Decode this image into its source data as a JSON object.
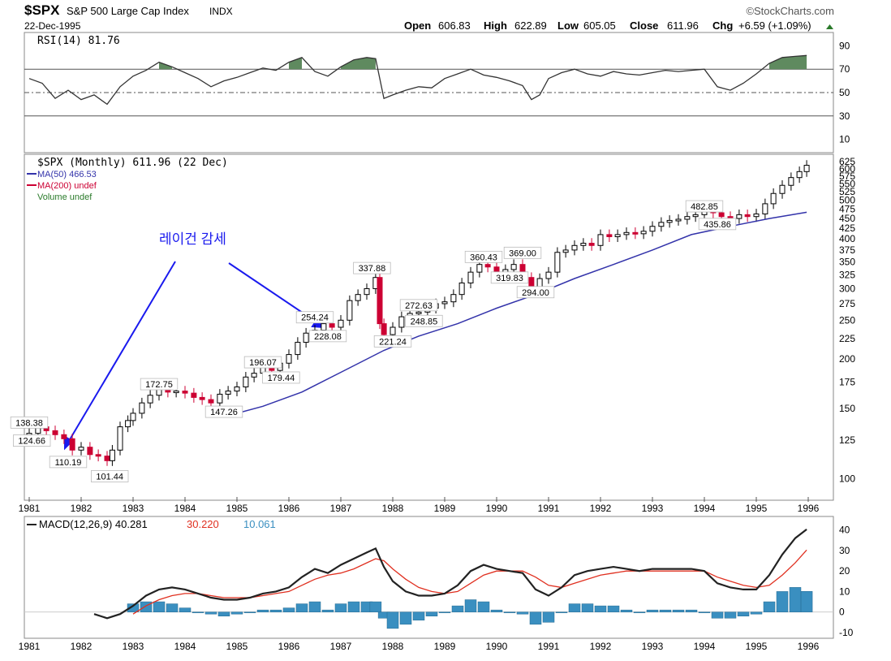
{
  "header": {
    "symbol": "$SPX",
    "name": "S&P 500 Large Cap Index",
    "exchange": "INDX",
    "date": "22-Dec-1995",
    "brand": "©StockCharts.com",
    "open_label": "Open",
    "open": "606.83",
    "high_label": "High",
    "high": "622.89",
    "low_label": "Low",
    "low": "605.05",
    "close_label": "Close",
    "close": "611.96",
    "chg_label": "Chg",
    "chg": "+6.59 (+1.09%)"
  },
  "annotation": {
    "text": "레이건 감세"
  },
  "colors": {
    "up": "#000000",
    "down": "#cc0033",
    "ma50": "#3333aa",
    "rsi_fill": "#5f8a5f",
    "macd": "#222222",
    "signal": "#e03020",
    "hist": "#3a8fc0"
  },
  "chart_data": [
    {
      "type": "line",
      "title": "RSI(14) 81.76",
      "ylim": [
        0,
        100
      ],
      "yticks": [
        10,
        30,
        50,
        70,
        90
      ],
      "hlines": [
        30,
        50,
        70
      ],
      "x": [
        1981.0,
        1981.25,
        1981.5,
        1981.75,
        1982.0,
        1982.25,
        1982.5,
        1982.75,
        1983.0,
        1983.25,
        1983.5,
        1983.75,
        1984.0,
        1984.25,
        1984.5,
        1984.75,
        1985.0,
        1985.25,
        1985.5,
        1985.75,
        1986.0,
        1986.25,
        1986.5,
        1986.75,
        1987.0,
        1987.25,
        1987.5,
        1987.67,
        1987.83,
        1988.0,
        1988.25,
        1988.5,
        1988.75,
        1989.0,
        1989.25,
        1989.5,
        1989.75,
        1990.0,
        1990.25,
        1990.5,
        1990.67,
        1990.83,
        1991.0,
        1991.25,
        1991.5,
        1991.75,
        1992.0,
        1992.25,
        1992.5,
        1992.75,
        1993.0,
        1993.25,
        1993.5,
        1993.75,
        1994.0,
        1994.25,
        1994.5,
        1994.75,
        1995.0,
        1995.25,
        1995.5,
        1995.75,
        1995.97
      ],
      "y": [
        62,
        58,
        45,
        52,
        44,
        48,
        40,
        55,
        64,
        69,
        76,
        72,
        67,
        62,
        55,
        60,
        63,
        67,
        71,
        69,
        76,
        80,
        68,
        64,
        72,
        78,
        80,
        79,
        45,
        48,
        52,
        55,
        54,
        62,
        66,
        70,
        65,
        63,
        60,
        56,
        44,
        48,
        62,
        67,
        70,
        66,
        64,
        68,
        66,
        65,
        67,
        69,
        68,
        69,
        70,
        55,
        52,
        58,
        66,
        75,
        80,
        81,
        81.76
      ]
    },
    {
      "type": "candlestick",
      "title": "$SPX (Monthly) 611.96 (22 Dec)",
      "scale": "log",
      "ylim": [
        90,
        640
      ],
      "yticks": [
        100,
        125,
        150,
        175,
        200,
        225,
        250,
        275,
        300,
        325,
        350,
        375,
        400,
        425,
        450,
        475,
        500,
        525,
        550,
        575,
        600,
        625
      ],
      "xticks": [
        "1981",
        "1982",
        "1983",
        "1984",
        "1985",
        "1986",
        "1987",
        "1988",
        "1989",
        "1990",
        "1991",
        "1992",
        "1993",
        "1994",
        "1995",
        "1996"
      ],
      "legend": [
        "$SPX (Monthly) 611.96 (22 Dec)",
        "MA(50) 466.53",
        "MA(200) undef",
        "Volume undef"
      ],
      "series": [
        {
          "name": "$SPX",
          "x": [
            1981.0,
            1981.17,
            1981.33,
            1981.5,
            1981.67,
            1981.83,
            1982.0,
            1982.17,
            1982.33,
            1982.5,
            1982.6,
            1982.75,
            1982.9,
            1983.0,
            1983.17,
            1983.33,
            1983.5,
            1983.67,
            1983.83,
            1984.0,
            1984.17,
            1984.33,
            1984.5,
            1984.67,
            1984.83,
            1985.0,
            1985.17,
            1985.33,
            1985.5,
            1985.67,
            1985.83,
            1986.0,
            1986.17,
            1986.33,
            1986.5,
            1986.67,
            1986.83,
            1987.0,
            1987.17,
            1987.33,
            1987.5,
            1987.67,
            1987.75,
            1987.83,
            1988.0,
            1988.17,
            1988.33,
            1988.5,
            1988.67,
            1988.83,
            1989.0,
            1989.17,
            1989.33,
            1989.5,
            1989.67,
            1989.83,
            1990.0,
            1990.17,
            1990.33,
            1990.5,
            1990.67,
            1990.83,
            1991.0,
            1991.17,
            1991.33,
            1991.5,
            1991.67,
            1991.83,
            1992.0,
            1992.17,
            1992.33,
            1992.5,
            1992.67,
            1992.83,
            1993.0,
            1993.17,
            1993.33,
            1993.5,
            1993.67,
            1993.83,
            1994.0,
            1994.17,
            1994.33,
            1994.5,
            1994.67,
            1994.83,
            1995.0,
            1995.17,
            1995.33,
            1995.5,
            1995.67,
            1995.83,
            1995.97
          ],
          "close": [
            130,
            135,
            132,
            129,
            126,
            118,
            120,
            115,
            114,
            111,
            118,
            135,
            140,
            146,
            155,
            162,
            168,
            165,
            166,
            164,
            160,
            158,
            155,
            163,
            166,
            170,
            180,
            184,
            190,
            187,
            195,
            205,
            220,
            232,
            236,
            245,
            240,
            250,
            280,
            290,
            300,
            320,
            245,
            230,
            240,
            255,
            260,
            262,
            268,
            275,
            278,
            290,
            310,
            330,
            345,
            340,
            330,
            335,
            345,
            320,
            300,
            318,
            330,
            370,
            375,
            385,
            390,
            385,
            410,
            405,
            410,
            415,
            412,
            418,
            430,
            440,
            445,
            448,
            455,
            460,
            480,
            465,
            455,
            450,
            460,
            455,
            462,
            490,
            520,
            545,
            570,
            590,
            611.96
          ]
        },
        {
          "name": "MA(50)",
          "x": [
            1984.75,
            1985.5,
            1986.25,
            1987.0,
            1987.83,
            1988.5,
            1989.25,
            1990.0,
            1990.75,
            1991.5,
            1992.25,
            1993.0,
            1993.75,
            1994.5,
            1995.25,
            1995.97
          ],
          "y": [
            143,
            152,
            165,
            185,
            210,
            228,
            245,
            268,
            290,
            318,
            345,
            375,
            410,
            430,
            450,
            466.53
          ]
        }
      ],
      "labels": [
        {
          "text": "138.38",
          "x": 1981.0,
          "y": 138.38
        },
        {
          "text": "124.66",
          "x": 1981.05,
          "y": 124.66
        },
        {
          "text": "110.19",
          "x": 1981.75,
          "y": 110.19
        },
        {
          "text": "101.44",
          "x": 1982.55,
          "y": 101.44
        },
        {
          "text": "172.75",
          "x": 1983.5,
          "y": 172.75
        },
        {
          "text": "147.26",
          "x": 1984.75,
          "y": 147.26
        },
        {
          "text": "196.07",
          "x": 1985.5,
          "y": 196.07
        },
        {
          "text": "179.44",
          "x": 1985.85,
          "y": 179.44
        },
        {
          "text": "254.24",
          "x": 1986.5,
          "y": 254.24
        },
        {
          "text": "228.08",
          "x": 1986.75,
          "y": 228.08
        },
        {
          "text": "337.88",
          "x": 1987.6,
          "y": 337.88
        },
        {
          "text": "272.63",
          "x": 1988.5,
          "y": 272.63
        },
        {
          "text": "248.85",
          "x": 1988.6,
          "y": 248.85
        },
        {
          "text": "221.24",
          "x": 1988.0,
          "y": 221.24
        },
        {
          "text": "360.43",
          "x": 1989.75,
          "y": 360.43
        },
        {
          "text": "369.00",
          "x": 1990.5,
          "y": 369.0
        },
        {
          "text": "319.83",
          "x": 1990.25,
          "y": 319.83
        },
        {
          "text": "294.00",
          "x": 1990.75,
          "y": 294.0
        },
        {
          "text": "482.85",
          "x": 1994.0,
          "y": 482.85
        },
        {
          "text": "435.86",
          "x": 1994.25,
          "y": 435.86
        }
      ]
    },
    {
      "type": "line",
      "title": "MACD(12,26,9) 40.281, 30.220, 10.061",
      "ylim": [
        -12,
        45
      ],
      "yticks": [
        -10,
        0,
        10,
        20,
        30,
        40
      ],
      "series": [
        {
          "name": "MACD(12,26,9)",
          "label": "MACD(12,26,9) 40.281",
          "x": [
            1982.25,
            1982.5,
            1982.75,
            1983.0,
            1983.25,
            1983.5,
            1983.75,
            1984.0,
            1984.25,
            1984.5,
            1984.75,
            1985.0,
            1985.25,
            1985.5,
            1985.75,
            1986.0,
            1986.25,
            1986.5,
            1986.75,
            1987.0,
            1987.25,
            1987.5,
            1987.67,
            1987.83,
            1988.0,
            1988.25,
            1988.5,
            1988.75,
            1989.0,
            1989.25,
            1989.5,
            1989.75,
            1990.0,
            1990.25,
            1990.5,
            1990.75,
            1991.0,
            1991.25,
            1991.5,
            1991.75,
            1992.0,
            1992.25,
            1992.5,
            1992.75,
            1993.0,
            1993.25,
            1993.5,
            1993.75,
            1994.0,
            1994.25,
            1994.5,
            1994.75,
            1995.0,
            1995.25,
            1995.5,
            1995.75,
            1995.97
          ],
          "y": [
            -1,
            -3,
            -1,
            3,
            8,
            11,
            12,
            11,
            9,
            7,
            6,
            6,
            7,
            9,
            10,
            12,
            17,
            21,
            19,
            23,
            26,
            29,
            31,
            22,
            15,
            10,
            8,
            8,
            9,
            13,
            20,
            23,
            21,
            20,
            19,
            11,
            8,
            12,
            18,
            20,
            21,
            22,
            21,
            20,
            21,
            21,
            21,
            21,
            20,
            14,
            12,
            11,
            11,
            18,
            28,
            36,
            40.281
          ]
        },
        {
          "name": "Signal",
          "label": "30.220",
          "x": [
            1983.0,
            1983.25,
            1983.5,
            1983.75,
            1984.0,
            1984.25,
            1984.5,
            1984.75,
            1985.0,
            1985.25,
            1985.5,
            1985.75,
            1986.0,
            1986.25,
            1986.5,
            1986.75,
            1987.0,
            1987.25,
            1987.5,
            1987.67,
            1987.83,
            1988.0,
            1988.25,
            1988.5,
            1988.75,
            1989.0,
            1989.25,
            1989.5,
            1989.75,
            1990.0,
            1990.25,
            1990.5,
            1990.75,
            1991.0,
            1991.25,
            1991.5,
            1991.75,
            1992.0,
            1992.25,
            1992.5,
            1992.75,
            1993.0,
            1993.25,
            1993.5,
            1993.75,
            1994.0,
            1994.25,
            1994.5,
            1994.75,
            1995.0,
            1995.25,
            1995.5,
            1995.75,
            1995.97
          ],
          "y": [
            -1,
            3,
            6,
            8,
            9,
            9,
            8,
            7,
            7,
            7,
            8,
            9,
            10,
            13,
            16,
            18,
            19,
            21,
            24,
            26,
            25,
            21,
            16,
            12,
            10,
            9,
            10,
            14,
            18,
            20,
            20,
            20,
            17,
            13,
            12,
            14,
            16,
            18,
            19,
            20,
            20,
            20,
            20,
            20,
            20,
            20,
            17,
            15,
            13,
            12,
            13,
            18,
            24,
            30.22
          ]
        },
        {
          "name": "Histogram",
          "label": "10.061",
          "x": [
            1983.0,
            1983.25,
            1983.5,
            1983.75,
            1984.0,
            1984.25,
            1984.5,
            1984.75,
            1985.0,
            1985.25,
            1985.5,
            1985.75,
            1986.0,
            1986.25,
            1986.5,
            1986.75,
            1987.0,
            1987.25,
            1987.5,
            1987.67,
            1987.83,
            1988.0,
            1988.25,
            1988.5,
            1988.75,
            1989.0,
            1989.25,
            1989.5,
            1989.75,
            1990.0,
            1990.25,
            1990.5,
            1990.75,
            1991.0,
            1991.25,
            1991.5,
            1991.75,
            1992.0,
            1992.25,
            1992.5,
            1992.75,
            1993.0,
            1993.25,
            1993.5,
            1993.75,
            1994.0,
            1994.25,
            1994.5,
            1994.75,
            1995.0,
            1995.25,
            1995.5,
            1995.75,
            1995.97
          ],
          "y": [
            4,
            5,
            5,
            4,
            2,
            0,
            -1,
            -2,
            -1,
            0,
            1,
            1,
            2,
            4,
            5,
            1,
            4,
            5,
            5,
            5,
            -3,
            -8,
            -6,
            -4,
            -2,
            0,
            3,
            6,
            5,
            1,
            0,
            -1,
            -6,
            -5,
            0,
            4,
            4,
            3,
            3,
            1,
            0,
            1,
            1,
            1,
            1,
            0,
            -3,
            -3,
            -2,
            -1,
            5,
            10,
            12,
            10.061
          ]
        }
      ]
    }
  ]
}
